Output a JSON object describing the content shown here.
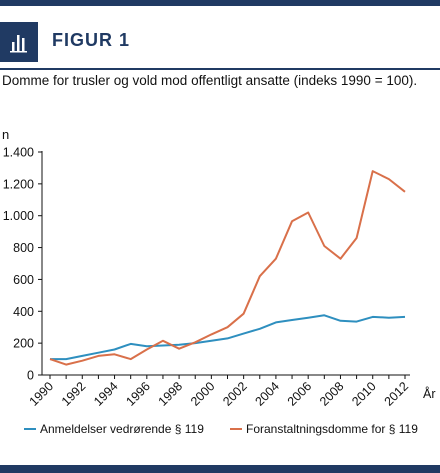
{
  "figure": {
    "label": "FIGUR 1",
    "caption": "Domme for trusler og vold mod offentligt ansatte (indeks 1990 = 100).",
    "accent_color": "#203a63",
    "icon": "bar-chart-icon"
  },
  "chart_data": {
    "type": "line",
    "title": "",
    "ylabel": "n",
    "xlabel": "År",
    "ylim": [
      0,
      1400
    ],
    "xlim": [
      1990,
      2012
    ],
    "grid": false,
    "legend_position": "bottom",
    "y_ticks": [
      0,
      200,
      400,
      600,
      800,
      1000,
      1200,
      1400
    ],
    "y_tick_labels": [
      "0",
      "200",
      "400",
      "600",
      "800",
      "1.000",
      "1.200",
      "1.400"
    ],
    "x_ticks": [
      1990,
      1992,
      1994,
      1996,
      1998,
      2000,
      2002,
      2004,
      2006,
      2008,
      2010,
      2012
    ],
    "x_tick_labels": [
      "1990",
      "1992",
      "1994",
      "1996",
      "1998",
      "2000",
      "2002",
      "2004",
      "2006",
      "2008",
      "2010",
      "2012"
    ],
    "x": [
      1990,
      1991,
      1992,
      1993,
      1994,
      1995,
      1996,
      1997,
      1998,
      1999,
      2000,
      2001,
      2002,
      2003,
      2004,
      2005,
      2006,
      2007,
      2008,
      2009,
      2010,
      2011,
      2012
    ],
    "series": [
      {
        "name": "Anmeldelser vedrørende § 119",
        "color": "#2e8fbf",
        "values": [
          100,
          100,
          120,
          140,
          160,
          195,
          180,
          185,
          190,
          200,
          215,
          230,
          260,
          290,
          330,
          345,
          360,
          375,
          340,
          335,
          365,
          360,
          365
        ]
      },
      {
        "name": "Foranstaltningsdomme for § 119",
        "color": "#d9704a",
        "values": [
          100,
          65,
          90,
          120,
          130,
          100,
          160,
          215,
          165,
          205,
          255,
          300,
          385,
          620,
          730,
          965,
          1020,
          810,
          730,
          860,
          1280,
          1230,
          1150
        ]
      }
    ]
  }
}
